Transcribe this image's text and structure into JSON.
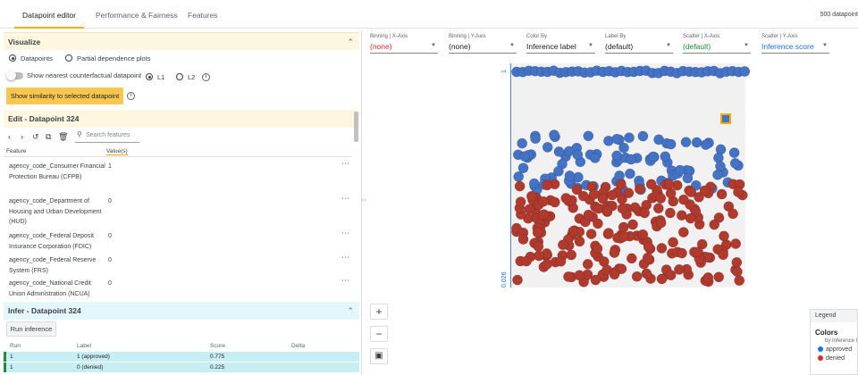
{
  "tabs": [
    {
      "label": "Datapoint editor"
    },
    {
      "label": "Performance & Fairness"
    },
    {
      "label": "Features"
    }
  ],
  "datapoint_count": "500 datapoint",
  "visualize": {
    "title": "Visualize",
    "datapoints_label": "Datapoints",
    "pdp_label": "Partial dependence plots",
    "counterfactual_label": "Show nearest counterfactual datapoint",
    "l1_label": "L1",
    "l2_label": "L2",
    "similarity_button": "Show similarity to selected datapoint"
  },
  "edit": {
    "title": "Edit - Datapoint 324",
    "search_placeholder": "Search features",
    "col_feature": "Feature",
    "col_value": "Value(s)",
    "rows": [
      {
        "name": "agency_code_Consumer Financial Protection Bureau (CFPB)",
        "value": "1"
      },
      {
        "name": "agency_code_Department of Housing and Urban Development (HUD)",
        "value": "0"
      },
      {
        "name": "agency_code_Federal Deposit Insurance Corporation (FDIC)",
        "value": "0"
      },
      {
        "name": "agency_code_Federal Reserve System (FRS)",
        "value": "0"
      },
      {
        "name": "agency_code_National Credit Union Administration (NCUA)",
        "value": "0"
      }
    ]
  },
  "infer": {
    "title": "Infer - Datapoint 324",
    "run_button": "Run inference",
    "columns": [
      "Run",
      "Label",
      "Score",
      "Delta"
    ],
    "rows": [
      {
        "run": "1",
        "label": "1 (approved)",
        "score": "0.775",
        "delta": ""
      },
      {
        "run": "1",
        "label": "0 (denied)",
        "score": "0.225",
        "delta": ""
      }
    ]
  },
  "controls": [
    {
      "caption": "Binning | X-Axis",
      "value": "(none)",
      "color": "#d93025"
    },
    {
      "caption": "Binning | Y-Axis",
      "value": "(none)",
      "color": "#202124"
    },
    {
      "caption": "Color By",
      "value": "Inference label",
      "color": "#202124"
    },
    {
      "caption": "Label By",
      "value": "(default)",
      "color": "#202124"
    },
    {
      "caption": "Scatter | X-Axis",
      "value": "(default)",
      "color": "#1e8e3e"
    },
    {
      "caption": "Scatter | Y-Axis",
      "value": "Inference score",
      "color": "#1a73e8"
    }
  ],
  "plot": {
    "y_top_tick": "1",
    "y_bottom_tick": "0.026",
    "approved_color": "#4472c4",
    "denied_color": "#b03a2e",
    "approved_count": 130,
    "denied_count": 220
  },
  "zoom": {
    "in": "+",
    "out": "−"
  },
  "legend": {
    "header": "Legend",
    "title": "Colors",
    "subtitle": "by Inference l",
    "items": [
      {
        "label": "approved",
        "color": "#1a73e8"
      },
      {
        "label": "denied",
        "color": "#d93025"
      }
    ]
  }
}
